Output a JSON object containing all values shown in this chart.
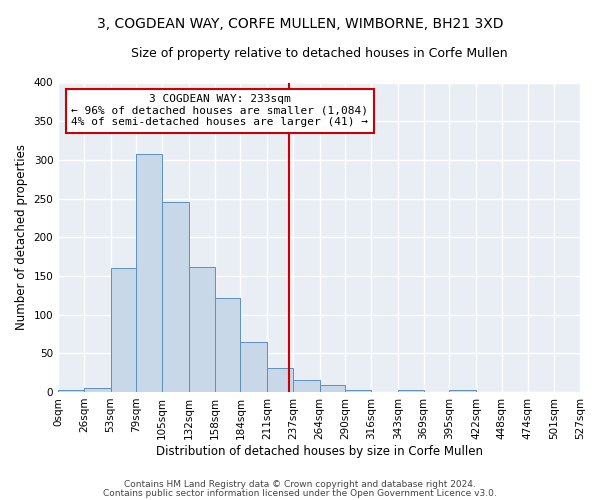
{
  "title1": "3, COGDEAN WAY, CORFE MULLEN, WIMBORNE, BH21 3XD",
  "title2": "Size of property relative to detached houses in Corfe Mullen",
  "xlabel": "Distribution of detached houses by size in Corfe Mullen",
  "ylabel": "Number of detached properties",
  "bin_edges": [
    0,
    26,
    53,
    79,
    105,
    132,
    158,
    184,
    211,
    237,
    264,
    290,
    316,
    343,
    369,
    395,
    422,
    448,
    474,
    501,
    527
  ],
  "bar_heights": [
    3,
    5,
    160,
    307,
    246,
    161,
    121,
    65,
    31,
    16,
    9,
    3,
    0,
    3,
    0,
    3,
    0,
    0,
    0,
    0
  ],
  "bar_facecolor": "#c8d8e8",
  "bar_edgecolor": "#5a90c0",
  "property_line_x": 233,
  "property_line_color": "#cc0000",
  "annotation_text": "3 COGDEAN WAY: 233sqm\n← 96% of detached houses are smaller (1,084)\n4% of semi-detached houses are larger (41) →",
  "annotation_box_edgecolor": "#cc0000",
  "annotation_box_facecolor": "#ffffff",
  "tick_labels": [
    "0sqm",
    "26sqm",
    "53sqm",
    "79sqm",
    "105sqm",
    "132sqm",
    "158sqm",
    "184sqm",
    "211sqm",
    "237sqm",
    "264sqm",
    "290sqm",
    "316sqm",
    "343sqm",
    "369sqm",
    "395sqm",
    "422sqm",
    "448sqm",
    "474sqm",
    "501sqm",
    "527sqm"
  ],
  "ylim": [
    0,
    400
  ],
  "yticks": [
    0,
    50,
    100,
    150,
    200,
    250,
    300,
    350,
    400
  ],
  "background_color": "#e8eef4",
  "grid_color": "#ffffff",
  "footer_line1": "Contains HM Land Registry data © Crown copyright and database right 2024.",
  "footer_line2": "Contains public sector information licensed under the Open Government Licence v3.0.",
  "title1_fontsize": 10,
  "title2_fontsize": 9,
  "xlabel_fontsize": 8.5,
  "ylabel_fontsize": 8.5,
  "tick_fontsize": 7.5,
  "annotation_fontsize": 8,
  "footer_fontsize": 6.5
}
